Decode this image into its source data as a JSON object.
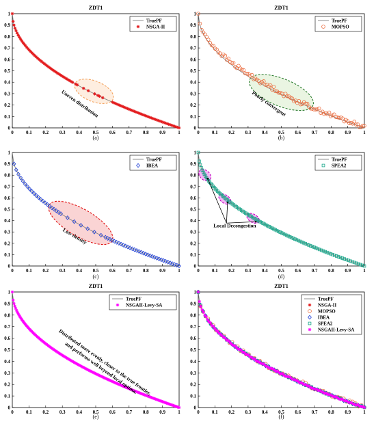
{
  "colors": {
    "truepf": "#808080",
    "nsga2": "#e31a1c",
    "mopso": "#ea6a3c",
    "ibea": "#1f3fd6",
    "spea2": "#17a589",
    "levy": "#ff00ff",
    "axis": "#000000"
  },
  "chart_data": [
    {
      "id": "a",
      "type": "scatter",
      "title": "ZDT1",
      "caption": "(a)",
      "xlim": [
        0,
        1
      ],
      "ylim": [
        0,
        1
      ],
      "xticks": [
        "0",
        "0.1",
        "0.2",
        "0.3",
        "0.4",
        "0.5",
        "0.6",
        "0.7",
        "0.8",
        "0.9",
        "1"
      ],
      "yticks": [
        "0",
        "0.1",
        "0.2",
        "0.3",
        "0.4",
        "0.5",
        "0.6",
        "0.7",
        "0.8",
        "0.9",
        "1"
      ],
      "legend_position": "top-right",
      "legend": [
        {
          "label": "TruePF",
          "marker": "line",
          "color": "#808080"
        },
        {
          "label": "NSGA-II",
          "marker": "star",
          "color": "#e31a1c"
        }
      ],
      "series": [
        {
          "name": "TruePF",
          "marker": "line",
          "color": "#808080",
          "curve": "y = 1 - sqrt(x)",
          "x_range": [
            0,
            1
          ]
        },
        {
          "name": "NSGA-II",
          "marker": "star",
          "color": "#e31a1c",
          "curve": "y = 1 - sqrt(x)",
          "points": 110,
          "x_range": [
            0,
            1
          ],
          "spacing": "uneven"
        }
      ],
      "annotation": {
        "text": "Uneven distribution",
        "ellipse_center": [
          0.49,
          0.32
        ],
        "ellipse_fill": "#fde2cc",
        "ellipse_stroke": "#f4a460"
      }
    },
    {
      "id": "b",
      "type": "scatter",
      "title": "ZDT1",
      "caption": "(b)",
      "xlim": [
        0,
        1
      ],
      "ylim": [
        0,
        1
      ],
      "xticks": [
        "0",
        "0.1",
        "0.2",
        "0.3",
        "0.4",
        "0.5",
        "0.6",
        "0.7",
        "0.8",
        "0.9",
        "1"
      ],
      "yticks": [
        "0",
        "0.1",
        "0.2",
        "0.3",
        "0.4",
        "0.5",
        "0.6",
        "0.7",
        "0.8",
        "0.9",
        "1"
      ],
      "legend_position": "top-right",
      "legend": [
        {
          "label": "TruePF",
          "marker": "line",
          "color": "#808080"
        },
        {
          "label": "MOPSO",
          "marker": "circle",
          "color": "#ea6a3c"
        }
      ],
      "series": [
        {
          "name": "TruePF",
          "marker": "line",
          "color": "#808080",
          "curve": "y = 1 - sqrt(x)",
          "x_range": [
            0,
            1
          ]
        },
        {
          "name": "MOPSO",
          "marker": "circle",
          "color": "#ea6a3c",
          "curve": "y = 1 - sqrt(x) + noise",
          "points": 100,
          "x_range": [
            0,
            1
          ]
        }
      ],
      "annotation": {
        "text": "Poorly convergent",
        "ellipse_center": [
          0.5,
          0.31
        ],
        "ellipse_fill": "#dcefcf",
        "ellipse_stroke": "#2e7d32"
      }
    },
    {
      "id": "c",
      "type": "scatter",
      "title": "",
      "caption": "(c)",
      "xlim": [
        0,
        1
      ],
      "ylim": [
        0,
        1
      ],
      "xticks": [
        "0",
        "0.1",
        "0.2",
        "0.3",
        "0.4",
        "0.5",
        "0.6",
        "0.7",
        "0.8",
        "0.9",
        "1"
      ],
      "yticks": [
        "0",
        "0.1",
        "0.2",
        "0.3",
        "0.4",
        "0.5",
        "0.6",
        "0.7",
        "0.8",
        "0.9",
        "1"
      ],
      "legend_position": "top-right",
      "legend": [
        {
          "label": "TruePF",
          "marker": "line",
          "color": "#808080"
        },
        {
          "label": "IBEA",
          "marker": "diamond",
          "color": "#1f3fd6"
        }
      ],
      "series": [
        {
          "name": "TruePF",
          "marker": "line",
          "color": "#808080",
          "curve": "y = 1 - sqrt(x)",
          "x_range": [
            0,
            1
          ]
        },
        {
          "name": "IBEA",
          "marker": "diamond",
          "color": "#1f3fd6",
          "curve": "y = 1 - sqrt(x)",
          "points": 75,
          "x_range": [
            0.01,
            1
          ],
          "sparse_range": [
            0.3,
            0.55
          ]
        }
      ],
      "annotation": {
        "text": "Low density",
        "ellipse_center": [
          0.41,
          0.38
        ],
        "ellipse_fill": "#f7b8b8",
        "ellipse_stroke": "#e01010"
      }
    },
    {
      "id": "d",
      "type": "scatter",
      "title": "",
      "caption": "(d)",
      "xlim": [
        0,
        1
      ],
      "ylim": [
        0,
        1
      ],
      "xticks": [
        "0",
        "0.1",
        "0.2",
        "0.3",
        "0.4",
        "0.5",
        "0.6",
        "0.7",
        "0.8",
        "0.9",
        "1"
      ],
      "yticks": [
        "0",
        "0.1",
        "0.2",
        "0.3",
        "0.4",
        "0.5",
        "0.6",
        "0.7",
        "0.8",
        "0.9",
        "1"
      ],
      "legend_position": "top-right",
      "legend": [
        {
          "label": "TruePF",
          "marker": "line",
          "color": "#808080"
        },
        {
          "label": "SPEA2",
          "marker": "square",
          "color": "#17a589"
        }
      ],
      "series": [
        {
          "name": "TruePF",
          "marker": "line",
          "color": "#808080",
          "curve": "y = 1 - sqrt(x)",
          "x_range": [
            0,
            1
          ]
        },
        {
          "name": "SPEA2",
          "marker": "square",
          "color": "#17a589",
          "curve": "y = 1 - sqrt(x)",
          "points": 110,
          "x_range": [
            0,
            1
          ]
        }
      ],
      "annotation": {
        "text": "Local Decongestion",
        "ellipses": [
          [
            0.04,
            0.8
          ],
          [
            0.16,
            0.59
          ],
          [
            0.33,
            0.42
          ]
        ],
        "ellipse_fill": "#ee82ee",
        "ellipse_stroke": "#c000c0"
      }
    },
    {
      "id": "e",
      "type": "scatter",
      "title": "ZDT1",
      "caption": "(e)",
      "xlim": [
        0,
        1
      ],
      "ylim": [
        0,
        1
      ],
      "xticks": [
        "0",
        "0.1",
        "0.2",
        "0.3",
        "0.4",
        "0.5",
        "0.6",
        "0.7",
        "0.8",
        "0.9",
        "1"
      ],
      "yticks": [
        "0",
        "0.1",
        "0.2",
        "0.3",
        "0.4",
        "0.5",
        "0.6",
        "0.7",
        "0.8",
        "0.9",
        "1"
      ],
      "legend_position": "top-right",
      "legend": [
        {
          "label": "TruePF",
          "marker": "line",
          "color": "#808080"
        },
        {
          "label": "NSGAII-Levy-SA",
          "marker": "star",
          "color": "#ff00ff"
        }
      ],
      "series": [
        {
          "name": "TruePF",
          "marker": "line",
          "color": "#808080",
          "curve": "y = 1 - sqrt(x)",
          "x_range": [
            0,
            1
          ]
        },
        {
          "name": "NSGAII-Levy-SA",
          "marker": "star",
          "color": "#ff00ff",
          "curve": "y = 1 - sqrt(x)",
          "points": 200,
          "x_range": [
            0,
            1
          ]
        }
      ],
      "annotation": {
        "text": [
          "Distributed more evenly, closer to the true frontier,",
          "and performs well beyond local optima."
        ]
      }
    },
    {
      "id": "f",
      "type": "scatter",
      "title": "ZDT1",
      "caption": "(f)",
      "xlim": [
        0,
        1
      ],
      "ylim": [
        0,
        1
      ],
      "xticks": [
        "0",
        "0.1",
        "0.2",
        "0.3",
        "0.4",
        "0.5",
        "0.6",
        "0.7",
        "0.8",
        "0.9",
        "1"
      ],
      "yticks": [
        "0",
        "0.1",
        "0.2",
        "0.3",
        "0.4",
        "0.5",
        "0.6",
        "0.7",
        "0.8",
        "0.9",
        "1"
      ],
      "legend_position": "top-right",
      "legend": [
        {
          "label": "TruePF",
          "marker": "line",
          "color": "#808080"
        },
        {
          "label": "NSGA-II",
          "marker": "star",
          "color": "#e31a1c"
        },
        {
          "label": "MOPSO",
          "marker": "circle",
          "color": "#ea6a3c"
        },
        {
          "label": "IBEA",
          "marker": "diamond",
          "color": "#1f3fd6"
        },
        {
          "label": "SPEA2",
          "marker": "square",
          "color": "#17a589"
        },
        {
          "label": "NSGAII-Levy-SA",
          "marker": "star",
          "color": "#ff00ff"
        }
      ],
      "series": [
        {
          "name": "TruePF",
          "marker": "line",
          "color": "#808080",
          "curve": "y = 1 - sqrt(x)",
          "x_range": [
            0,
            1
          ]
        },
        {
          "name": "NSGA-II",
          "marker": "star",
          "color": "#e31a1c",
          "points": 60
        },
        {
          "name": "MOPSO",
          "marker": "circle",
          "color": "#ea6a3c",
          "points": 60
        },
        {
          "name": "IBEA",
          "marker": "diamond",
          "color": "#1f3fd6",
          "points": 60
        },
        {
          "name": "SPEA2",
          "marker": "square",
          "color": "#17a589",
          "points": 60
        },
        {
          "name": "NSGAII-Levy-SA",
          "marker": "star",
          "color": "#ff00ff",
          "points": 110
        }
      ]
    }
  ]
}
